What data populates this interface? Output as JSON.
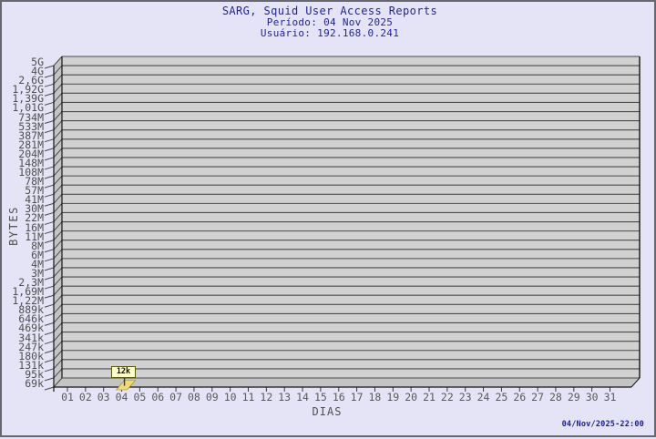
{
  "title": {
    "line1": "SARG, Squid User Access Reports",
    "line2": "Período: 04 Nov 2025",
    "line3": "Usuário: 192.168.0.241"
  },
  "footer": {
    "timestamp": "04/Nov/2025-22:00"
  },
  "chart_data": {
    "type": "bar",
    "style": "3d",
    "title": "SARG, Squid User Access Reports",
    "subtitle_period": "Período: 04 Nov 2025",
    "subtitle_user": "Usuário: 192.168.0.241",
    "xlabel": "DIAS",
    "ylabel": "BYTES",
    "y_scale": "log",
    "ylim": [
      "69k",
      "5G"
    ],
    "grid": true,
    "y_ticks": [
      "5G",
      "4G",
      "2,6G",
      "1,92G",
      "1,39G",
      "1,01G",
      "734M",
      "533M",
      "387M",
      "281M",
      "204M",
      "148M",
      "108M",
      "78M",
      "57M",
      "41M",
      "30M",
      "22M",
      "16M",
      "11M",
      "8M",
      "6M",
      "4M",
      "3M",
      "2,3M",
      "1,69M",
      "1,22M",
      "889k",
      "646k",
      "469k",
      "341k",
      "247k",
      "180k",
      "131k",
      "95k",
      "69k"
    ],
    "x_ticks": [
      "01",
      "02",
      "03",
      "04",
      "05",
      "06",
      "07",
      "08",
      "09",
      "10",
      "11",
      "12",
      "13",
      "14",
      "15",
      "16",
      "17",
      "18",
      "19",
      "20",
      "21",
      "22",
      "23",
      "24",
      "25",
      "26",
      "27",
      "28",
      "29",
      "30",
      "31"
    ],
    "bars": [
      {
        "day": "04",
        "value_label": "12k"
      }
    ]
  },
  "colors": {
    "background": "#e4e4f6",
    "title_text": "#2323a0",
    "wall_fill": "#d1d1d1",
    "side_fill": "#c4c4c4",
    "gridline": "#4b4b4b",
    "axis_edge": "#141414",
    "bar_fill": "#f0da78",
    "tooltip_fill": "#ffffc8",
    "tooltip_border": "#5a5a10",
    "tick_text": "#4f4f4f",
    "timestamp_text": "#1c1c96"
  }
}
